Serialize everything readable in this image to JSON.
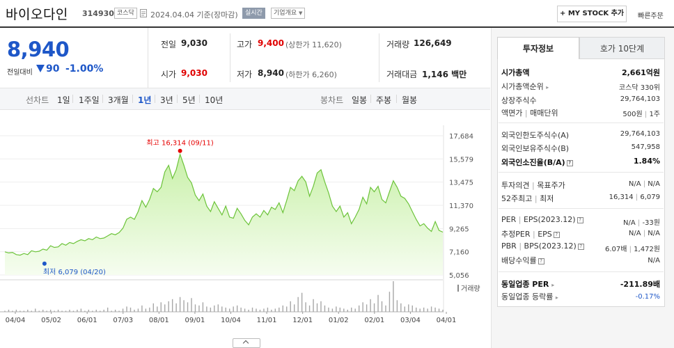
{
  "header": {
    "stock_name": "바이오다인",
    "stock_code": "314930",
    "market_tag": "코스닥",
    "date_text": "2024.04.04  기준(장마감)",
    "realtime_tag": "실시간",
    "company_tag": "기업개요",
    "mystock_label": "+ MY STOCK 추가",
    "quick_order_label": "빠른주문"
  },
  "price": {
    "current": "8,940",
    "change_label": "전일대비",
    "change_value": "90",
    "change_rate": "-1.00%",
    "prev_label": "전일",
    "prev_value": "9,030",
    "high_label": "고가",
    "high_value": "9,400",
    "upper_limit": "(상한가 11,620)",
    "volume_label": "거래량",
    "volume_value": "126,649",
    "open_label": "시가",
    "open_value": "9,030",
    "low_label": "저가",
    "low_value": "8,940",
    "lower_limit": "(하한가 6,260)",
    "amount_label": "거래대금",
    "amount_value": "1,146 백만"
  },
  "period_bar": {
    "line_label": "선차트",
    "periods": [
      "1일",
      "1주일",
      "3개월",
      "1년",
      "3년",
      "5년",
      "10년"
    ],
    "active": "1년",
    "candle_label": "봉차트",
    "candles": [
      "일봉",
      "주봉",
      "월봉"
    ]
  },
  "chart_data": {
    "type": "area",
    "x_ticks": [
      "04/04",
      "05/02",
      "06/01",
      "07/03",
      "08/01",
      "09/01",
      "10/04",
      "11/01",
      "12/01",
      "01/02",
      "02/01",
      "03/04",
      "04/01"
    ],
    "y_ticks": [
      17684,
      15579,
      13475,
      11370,
      9265,
      7160,
      5056
    ],
    "ylim": [
      5056,
      17684
    ],
    "high_annotation": "최고 16,314 (09/11)",
    "low_annotation": "최저 6,079 (04/20)",
    "high": {
      "x": "09/11",
      "y": 16314
    },
    "low": {
      "x": "04/20",
      "y": 6079
    },
    "series": [
      {
        "values": [
          7150,
          7050,
          7100,
          6900,
          6850,
          7000,
          6900,
          7250,
          7150,
          7200,
          7400,
          7300,
          7700,
          7550,
          7600,
          7900,
          7750,
          8000,
          7900,
          8100,
          8250,
          8150,
          8350,
          8250,
          8500,
          8350,
          8400,
          8600,
          8800,
          8700,
          8900,
          9300,
          10100,
          10300,
          10100,
          10800,
          11800,
          11200,
          11900,
          12900,
          12600,
          13000,
          14400,
          15000,
          13800,
          14600,
          16000,
          15000,
          13900,
          13400,
          12300,
          11800,
          12400,
          11300,
          10800,
          11700,
          11100,
          10500,
          11300,
          10300,
          10200,
          11100,
          10600,
          10000,
          9600,
          10300,
          10600,
          10300,
          10900,
          10500,
          11200,
          11000,
          11600,
          10700,
          11800,
          13000,
          12700,
          13600,
          14000,
          13500,
          12200,
          13100,
          14300,
          14600,
          13500,
          12500,
          11300,
          10800,
          11300,
          10300,
          10700,
          9700,
          10300,
          11000,
          12100,
          11500,
          13000,
          12600,
          13100,
          11900,
          11600,
          12600,
          13600,
          13000,
          12200,
          12000,
          11500,
          10800,
          10100,
          9500,
          9700,
          9300,
          9000,
          9900,
          9100,
          8940
        ]
      }
    ],
    "volume_label": "거래량",
    "volume": [
      1,
      2,
      1,
      2,
      1,
      1,
      2,
      1,
      3,
      1,
      2,
      1,
      2,
      1,
      2,
      1,
      1,
      2,
      1,
      2,
      3,
      1,
      2,
      1,
      2,
      1,
      2,
      4,
      1,
      2,
      1,
      3,
      5,
      4,
      2,
      3,
      6,
      3,
      4,
      8,
      5,
      9,
      7,
      10,
      12,
      8,
      14,
      11,
      9,
      13,
      7,
      6,
      9,
      5,
      4,
      6,
      7,
      5,
      4,
      3,
      5,
      6,
      4,
      3,
      2,
      4,
      3,
      2,
      3,
      4,
      2,
      3,
      4,
      6,
      5,
      10,
      7,
      14,
      18,
      9,
      6,
      12,
      8,
      10,
      6,
      4,
      3,
      5,
      4,
      3,
      2,
      4,
      3,
      6,
      9,
      7,
      12,
      8,
      16,
      10,
      6,
      19,
      29,
      11,
      8,
      5,
      7,
      6,
      4,
      3,
      4,
      3,
      5,
      4,
      3,
      2
    ]
  },
  "panel": {
    "tab_investment": "투자정보",
    "tab_ask": "호가 10단계",
    "market_cap_label": "시가총액",
    "market_cap_value": "2,661억원",
    "rank_label": "시가총액순위",
    "rank_value": "코스닥 330위",
    "shares_label": "상장주식수",
    "shares_value": "29,764,103",
    "par_label": "액면가",
    "par_sep": "|",
    "unit_label": "매매단위",
    "par_value": "500원",
    "unit_value": "1주",
    "foreign_limit_label": "외국인한도주식수(A)",
    "foreign_limit_value": "29,764,103",
    "foreign_hold_label": "외국인보유주식수(B)",
    "foreign_hold_value": "547,958",
    "foreign_ratio_label": "외국인소진율(B/A)",
    "foreign_ratio_value": "1.84%",
    "opinion_label": "투자의견",
    "target_label": "목표주가",
    "opinion_value": "N/A",
    "target_value": "N/A",
    "week52_label": "52주최고",
    "week52_low_label": "최저",
    "week52_high_value": "16,314",
    "week52_low_value": "6,079",
    "per_label": "PER",
    "eps_label": "EPS(2023.12)",
    "per_value": "N/A",
    "eps_value": "-33원",
    "est_per_label": "추정PER",
    "est_eps_label": "EPS",
    "est_per_value": "N/A",
    "est_eps_value": "N/A",
    "pbr_label": "PBR",
    "bps_label": "BPS(2023.12)",
    "pbr_value": "6.07배",
    "bps_value": "1,472원",
    "div_label": "배당수익률",
    "div_value": "N/A",
    "ind_per_label": "동일업종 PER",
    "ind_per_value": "-211.89배",
    "ind_rate_label": "동일업종 등락률",
    "ind_rate_value": "-0.17%"
  }
}
